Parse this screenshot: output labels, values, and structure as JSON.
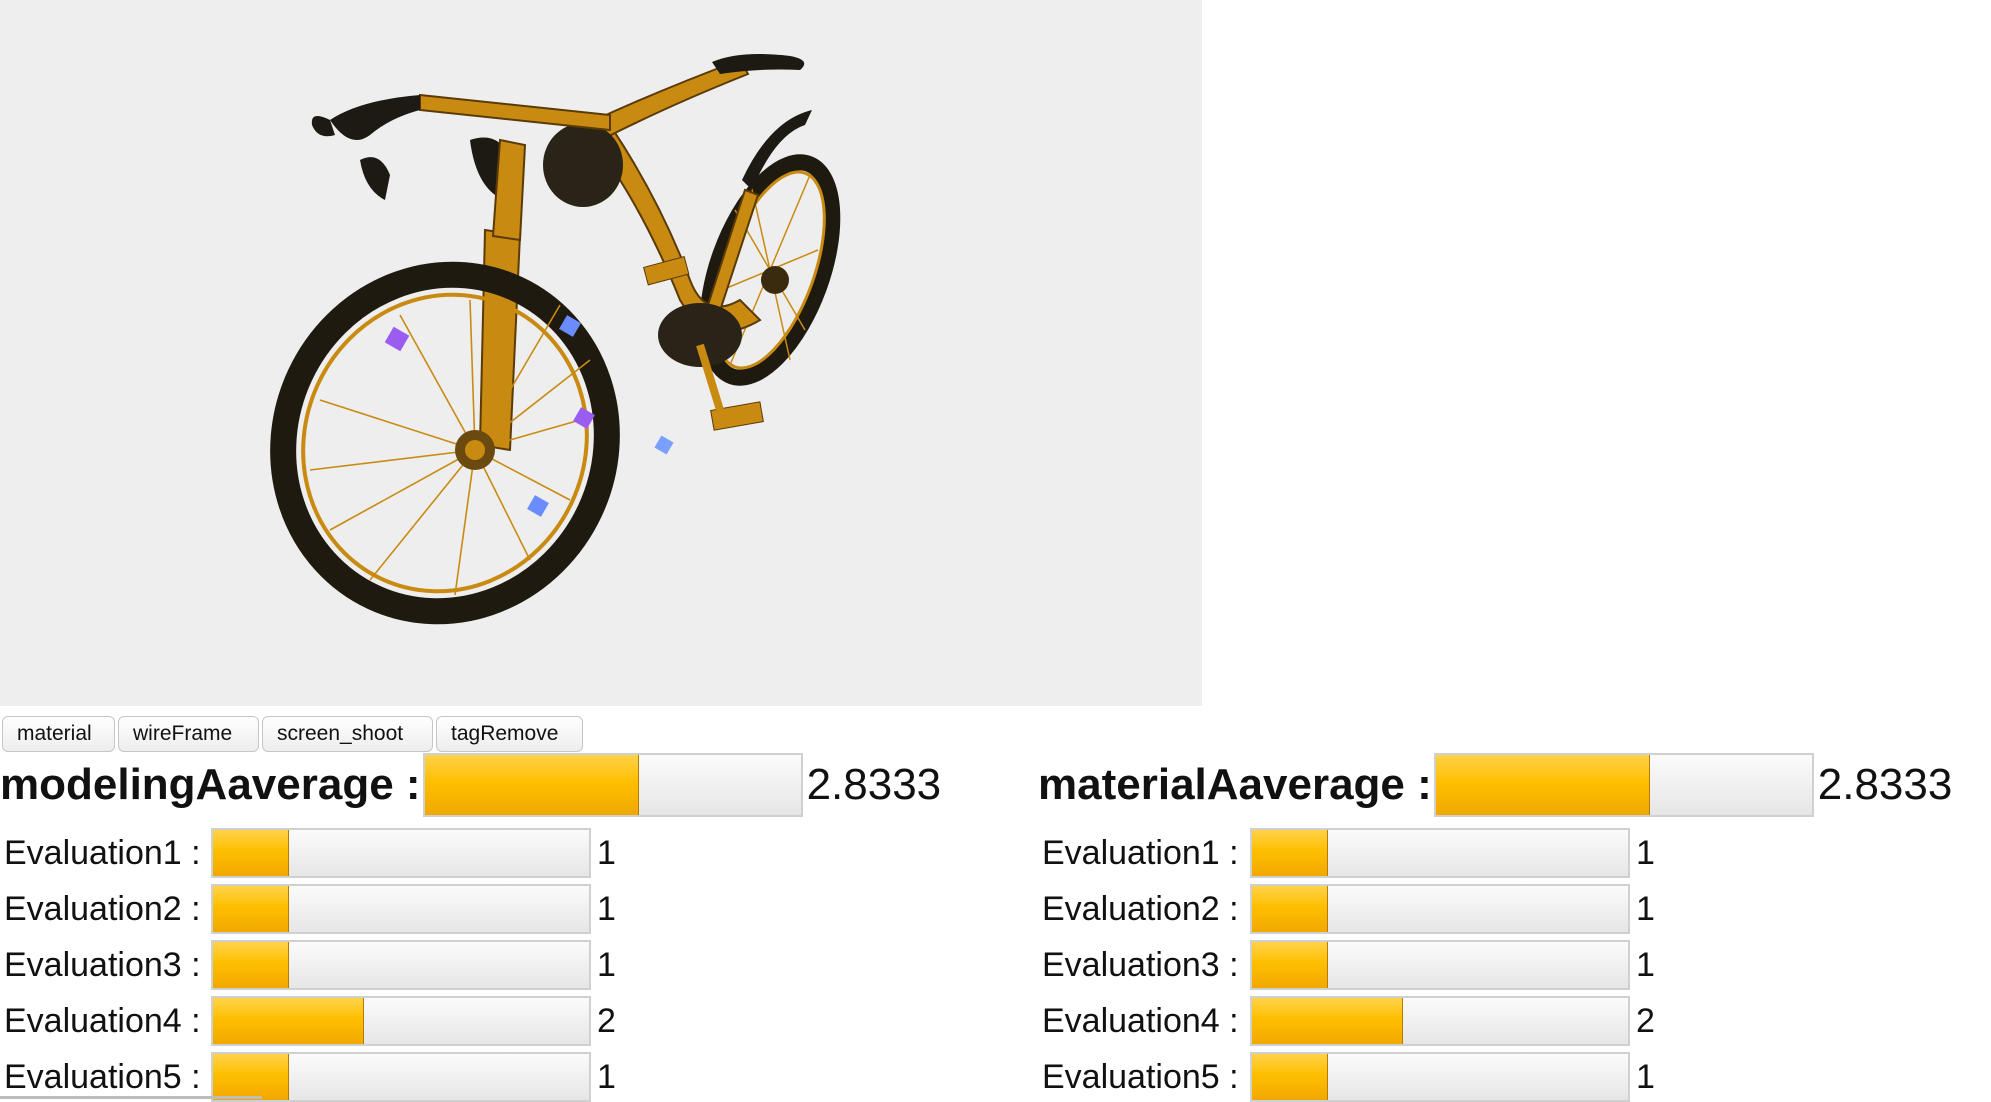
{
  "toolbar": {
    "material": "material",
    "wireframe": "wireFrame",
    "screen_shoot": "screen_shoot",
    "tag_remove": "tagRemove"
  },
  "meter_max": 5,
  "colors": {
    "fill": "#ffbf00",
    "viewer_bg": "#eeeeee",
    "bike_frame": "#c98a12"
  },
  "modeling": {
    "average_label": "modelingAaverage :",
    "average_value": "2.8333",
    "average_num": 2.8333,
    "evaluations": [
      {
        "label": "Evaluation1 :",
        "value": "1",
        "num": 1
      },
      {
        "label": "Evaluation2 :",
        "value": "1",
        "num": 1
      },
      {
        "label": "Evaluation3 :",
        "value": "1",
        "num": 1
      },
      {
        "label": "Evaluation4 :",
        "value": "2",
        "num": 2
      },
      {
        "label": "Evaluation5 :",
        "value": "1",
        "num": 1
      }
    ]
  },
  "material": {
    "average_label": "materialAaverage :",
    "average_value": "2.8333",
    "average_num": 2.8333,
    "evaluations": [
      {
        "label": "Evaluation1 :",
        "value": "1",
        "num": 1
      },
      {
        "label": "Evaluation2 :",
        "value": "1",
        "num": 1
      },
      {
        "label": "Evaluation3 :",
        "value": "1",
        "num": 1
      },
      {
        "label": "Evaluation4 :",
        "value": "2",
        "num": 2
      },
      {
        "label": "Evaluation5 :",
        "value": "1",
        "num": 1
      }
    ]
  }
}
